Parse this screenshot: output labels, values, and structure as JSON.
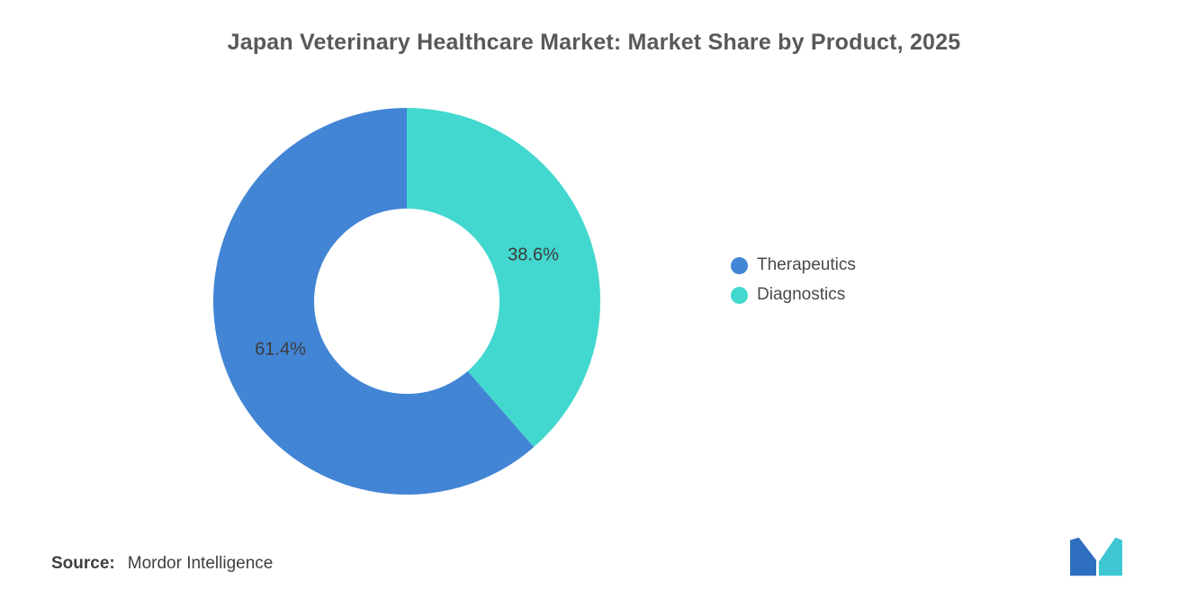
{
  "title": "Japan Veterinary Healthcare Market: Market Share by Product, 2025",
  "source": {
    "label": "Source:",
    "value": "Mordor Intelligence"
  },
  "legend": {
    "items": [
      {
        "label": "Therapeutics",
        "color": "#4285d5"
      },
      {
        "label": "Diagnostics",
        "color": "#43d8cf"
      }
    ]
  },
  "logo": {
    "name": "mordor-intelligence-logo",
    "blue": "#2f6fbf",
    "teal": "#3fc8d4"
  },
  "chart_data": {
    "type": "pie",
    "donut": true,
    "title": "Japan Veterinary Healthcare Market: Market Share by Product, 2025",
    "categories": [
      "Therapeutics",
      "Diagnostics"
    ],
    "values": [
      61.4,
      38.6
    ],
    "legend_position": "right",
    "start_angle_deg": 0,
    "direction": "clockwise",
    "outer_radius_px": 215,
    "inner_radius_px": 103,
    "label_radius_px": 150,
    "label_color": "#3c3c3c",
    "slices_draw_order": [
      {
        "name": "Diagnostics",
        "value": 38.6,
        "label": "38.6%",
        "color": "#43d8cf"
      },
      {
        "name": "Therapeutics",
        "value": 61.4,
        "label": "61.4%",
        "color": "#4285d5"
      }
    ]
  }
}
